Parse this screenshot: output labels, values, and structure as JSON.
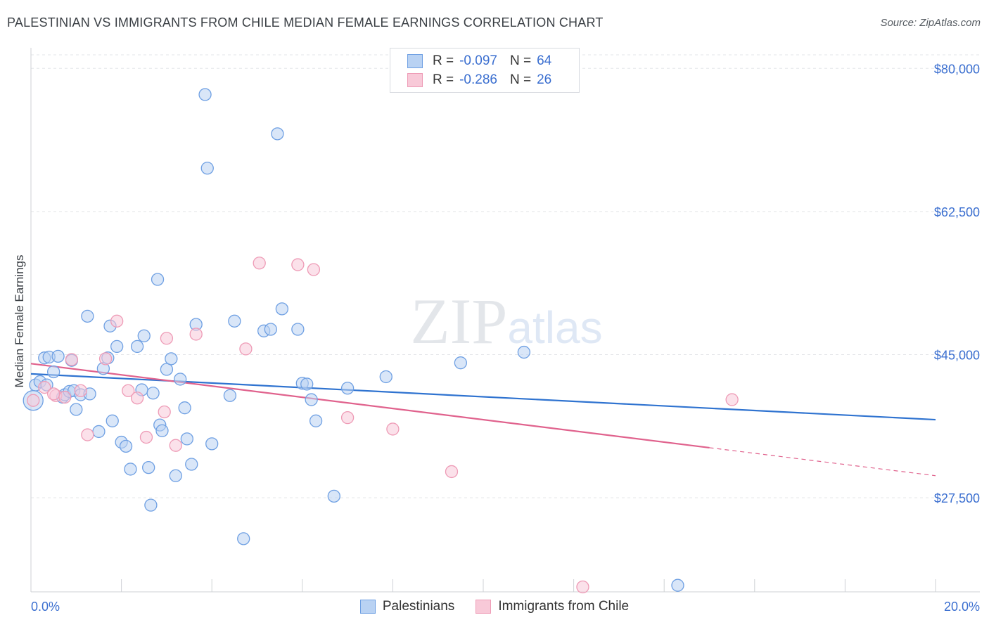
{
  "chart_data": {
    "type": "scatter",
    "title": "PALESTINIAN VS IMMIGRANTS FROM CHILE MEDIAN FEMALE EARNINGS CORRELATION CHART",
    "source": "Source: ZipAtlas.com",
    "xlabel": "",
    "ylabel": "Median Female Earnings",
    "xlim": [
      0,
      20
    ],
    "ylim": [
      16000,
      82000
    ],
    "x_tick_labels": [
      "0.0%",
      "20.0%"
    ],
    "y_ticks": [
      {
        "value": 80000,
        "label": "$80,000"
      },
      {
        "value": 62500,
        "label": "$62,500"
      },
      {
        "value": 45000,
        "label": "$45,000"
      },
      {
        "value": 27500,
        "label": "$27,500"
      }
    ],
    "watermark": "ZIPatlas",
    "legend": [
      {
        "r_label": "R =",
        "r_value": "-0.097",
        "n_label": "N =",
        "n_value": "64"
      },
      {
        "r_label": "R =",
        "r_value": "-0.286",
        "n_label": "N =",
        "n_value": "26"
      }
    ],
    "series": [
      {
        "name": "Palestinians",
        "color": "#6fa0e3",
        "fill": "#b9d2f3",
        "line_color": "#2f73d0",
        "trend": {
          "x0": 0,
          "y0": 42650,
          "x1": 20,
          "y1": 37050,
          "solid_to": 20
        },
        "points": [
          [
            0.1,
            41300
          ],
          [
            0.2,
            41700
          ],
          [
            0.3,
            44600
          ],
          [
            0.35,
            41300
          ],
          [
            0.4,
            44700
          ],
          [
            0.5,
            42900
          ],
          [
            0.6,
            44800
          ],
          [
            0.7,
            39800
          ],
          [
            0.75,
            40100
          ],
          [
            0.85,
            40500
          ],
          [
            0.9,
            44300
          ],
          [
            0.95,
            40600
          ],
          [
            1.0,
            38300
          ],
          [
            1.1,
            40100
          ],
          [
            1.25,
            49700
          ],
          [
            1.3,
            40200
          ],
          [
            1.5,
            35600
          ],
          [
            1.6,
            43300
          ],
          [
            1.7,
            44600
          ],
          [
            1.75,
            48500
          ],
          [
            1.8,
            36900
          ],
          [
            1.9,
            46000
          ],
          [
            2.0,
            34300
          ],
          [
            2.1,
            33800
          ],
          [
            2.2,
            31000
          ],
          [
            2.35,
            46000
          ],
          [
            2.45,
            40700
          ],
          [
            2.5,
            47300
          ],
          [
            2.6,
            31200
          ],
          [
            2.65,
            26600
          ],
          [
            2.7,
            40300
          ],
          [
            2.8,
            54200
          ],
          [
            2.85,
            36400
          ],
          [
            2.9,
            35700
          ],
          [
            3.0,
            43200
          ],
          [
            3.1,
            44500
          ],
          [
            3.2,
            30200
          ],
          [
            3.3,
            42000
          ],
          [
            3.4,
            38500
          ],
          [
            3.45,
            34700
          ],
          [
            3.55,
            31600
          ],
          [
            3.65,
            48700
          ],
          [
            3.85,
            76800
          ],
          [
            3.9,
            67800
          ],
          [
            4.0,
            34100
          ],
          [
            4.4,
            40000
          ],
          [
            4.5,
            49100
          ],
          [
            4.7,
            22500
          ],
          [
            5.15,
            47900
          ],
          [
            5.3,
            48100
          ],
          [
            5.45,
            72000
          ],
          [
            5.55,
            50600
          ],
          [
            5.9,
            48100
          ],
          [
            6.0,
            41500
          ],
          [
            6.1,
            41400
          ],
          [
            6.2,
            39500
          ],
          [
            6.3,
            36900
          ],
          [
            6.7,
            27700
          ],
          [
            7.0,
            40900
          ],
          [
            7.85,
            42300
          ],
          [
            9.5,
            44000
          ],
          [
            10.9,
            45300
          ],
          [
            14.3,
            16800
          ],
          [
            0.05,
            39400
          ]
        ]
      },
      {
        "name": "Immigrants from Chile",
        "color": "#ee9bb6",
        "fill": "#f8c9d8",
        "line_color": "#e0628d",
        "trend": {
          "x0": 0,
          "y0": 43900,
          "x1": 20,
          "y1": 30200,
          "solid_to": 15
        },
        "points": [
          [
            0.05,
            39400
          ],
          [
            0.3,
            41000
          ],
          [
            0.55,
            40000
          ],
          [
            0.75,
            39800
          ],
          [
            0.9,
            44400
          ],
          [
            1.1,
            40600
          ],
          [
            1.25,
            35200
          ],
          [
            1.65,
            44500
          ],
          [
            1.9,
            49100
          ],
          [
            2.15,
            40600
          ],
          [
            2.35,
            39700
          ],
          [
            2.55,
            34900
          ],
          [
            2.95,
            38000
          ],
          [
            3.0,
            47000
          ],
          [
            3.2,
            33900
          ],
          [
            3.65,
            47500
          ],
          [
            4.75,
            45700
          ],
          [
            5.05,
            56200
          ],
          [
            5.9,
            56000
          ],
          [
            6.25,
            55400
          ],
          [
            7.0,
            37300
          ],
          [
            8.0,
            35900
          ],
          [
            9.3,
            30700
          ],
          [
            12.2,
            16600
          ],
          [
            15.5,
            39500
          ],
          [
            0.5,
            40200
          ]
        ]
      }
    ]
  }
}
